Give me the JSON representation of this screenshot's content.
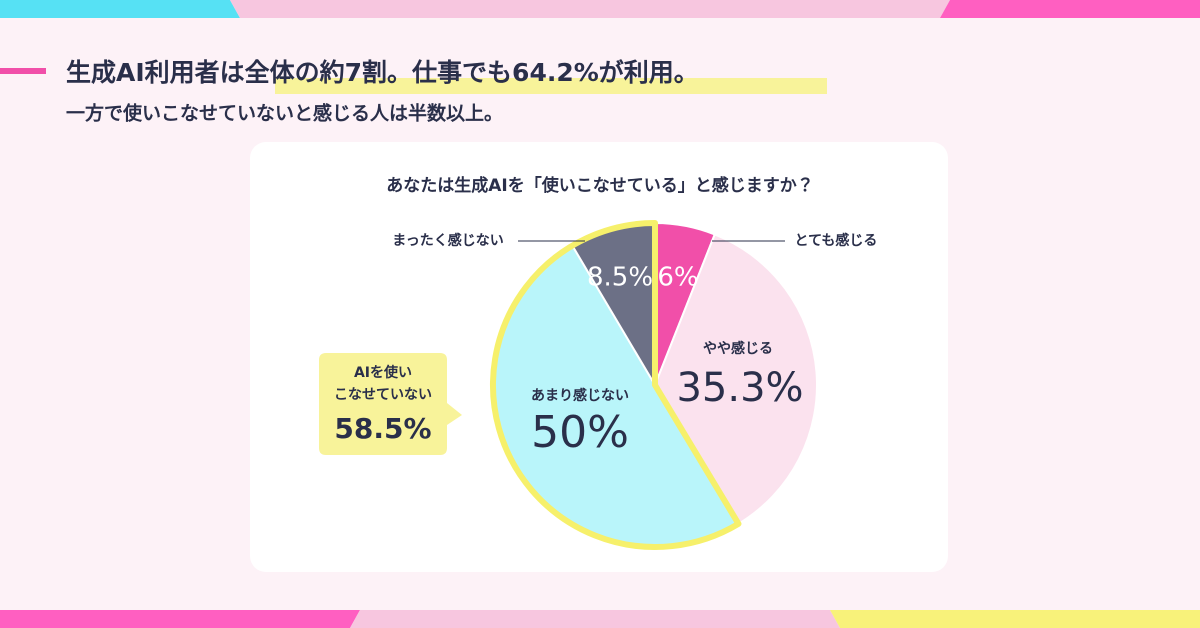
{
  "header": {
    "title": "生成AI利用者は全体の約7割。仕事でも64.2%が利用。",
    "subtitle": "一方で使いこなせていないと感じる人は半数以上。"
  },
  "chart_data": {
    "type": "pie",
    "title": "あなたは生成AIを「使いこなせている」と感じますか？",
    "categories": [
      "とても感じる",
      "やや感じる",
      "あまり感じない",
      "まったく感じない"
    ],
    "values": [
      6,
      35.3,
      50,
      8.5
    ],
    "value_labels": [
      "6%",
      "35.3%",
      "50%",
      "8.5%"
    ],
    "colors": [
      "#f14fa9",
      "#fbe2ee",
      "#b9f5fa",
      "#6c7086"
    ],
    "highlight_color": "#f6f06b",
    "callout": {
      "lines": [
        "AIを使い",
        "こなせていない"
      ],
      "label": "58.5%"
    }
  }
}
